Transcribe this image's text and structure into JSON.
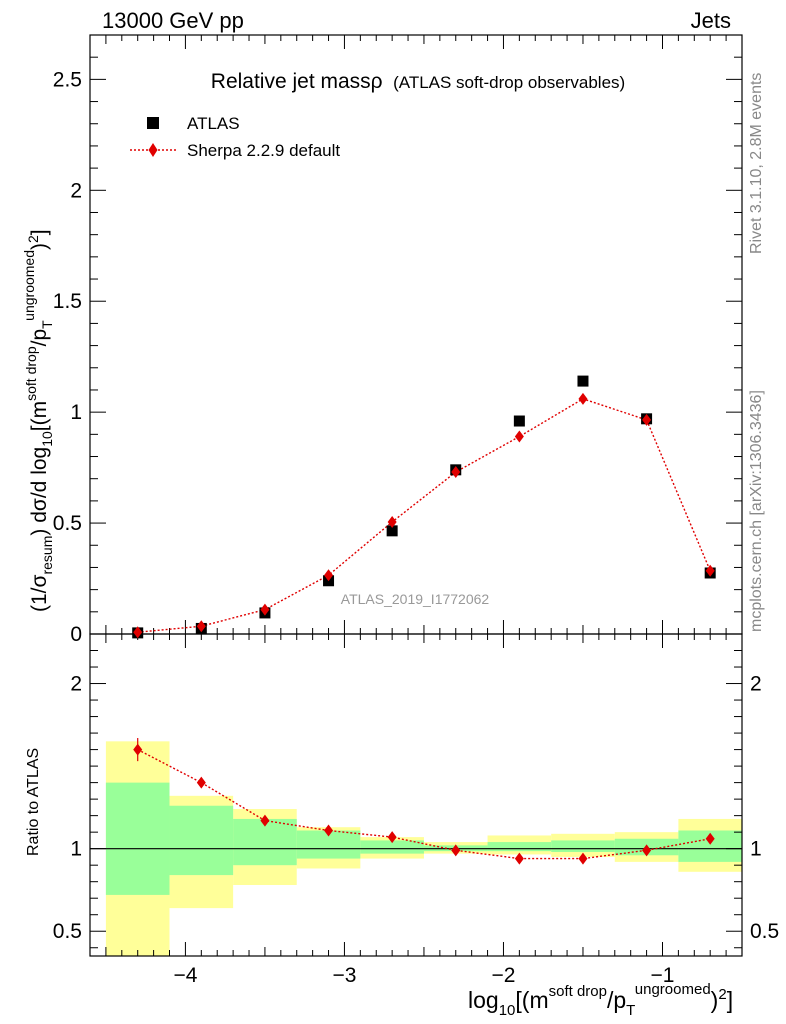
{
  "header": {
    "left": "13000 GeV pp",
    "right": "Jets"
  },
  "side_labels": {
    "rivet": "Rivet 3.1.10,  2.8M events",
    "mcplots": "mcplots.cern.ch [arXiv:1306.3436]"
  },
  "chart_data": {
    "type": "scatter",
    "title_main": "Relative jet massρ",
    "title_sub": "(ATLAS soft-drop observables)",
    "watermark": "ATLAS_2019_I1772062",
    "ylabel": "(1/σresum) dσ/d log10[(m^soft drop/pT^ungroomed)^2]",
    "ylabel_parts": {
      "pre": "(1/σ",
      "sub1": "resum",
      "mid": ") dσ/d log",
      "sub2": "10",
      "mid2": "[(m",
      "sup1": "soft drop",
      "mid3": "/p",
      "sub3": "T",
      "sup2": "ungroomed",
      "mid4": ")",
      "sup3": "2",
      "post": "]"
    },
    "xlabel_parts": {
      "pre": "log",
      "sub1": "10",
      "mid": "[(m",
      "sup1": "soft drop",
      "mid2": "/p",
      "sub2": "T",
      "sup2": "ungroomed",
      "mid3": ")",
      "sup3": "2",
      "post": "]"
    },
    "ratio_ylabel": "Ratio to ATLAS",
    "xlim": [
      -4.6,
      -0.5
    ],
    "ylim": [
      0,
      2.7
    ],
    "ratio_ylim": [
      0.35,
      2.3
    ],
    "x_ticks": [
      -4,
      -3,
      -2,
      -1
    ],
    "x_tick_labels": [
      "−4",
      "−3",
      "−2",
      "−1"
    ],
    "y_ticks": [
      0,
      0.5,
      1,
      1.5,
      2,
      2.5
    ],
    "y_tick_labels": [
      "0",
      "0.5",
      "1",
      "1.5",
      "2",
      "2.5"
    ],
    "ratio_ticks": [
      0.5,
      1,
      2
    ],
    "ratio_tick_labels": [
      "0.5",
      "1",
      "2"
    ],
    "bin_edges": [
      -4.5,
      -4.1,
      -3.7,
      -3.3,
      -2.9,
      -2.5,
      -2.1,
      -1.7,
      -1.3,
      -0.9,
      -0.5
    ],
    "x": [
      -4.3,
      -3.9,
      -3.5,
      -3.1,
      -2.7,
      -2.3,
      -1.9,
      -1.5,
      -1.1,
      -0.7
    ],
    "legend": [
      {
        "name": "ATLAS",
        "marker": "square",
        "color": "#000000"
      },
      {
        "name": "Sherpa 2.2.9 default",
        "marker": "diamond",
        "color": "#e00000"
      }
    ],
    "series": [
      {
        "name": "ATLAS",
        "values": [
          0.005,
          0.025,
          0.095,
          0.24,
          0.465,
          0.74,
          0.96,
          1.14,
          0.97,
          0.275
        ]
      },
      {
        "name": "Sherpa 2.2.9 default",
        "values": [
          0.008,
          0.035,
          0.11,
          0.265,
          0.505,
          0.73,
          0.89,
          1.06,
          0.965,
          0.285
        ]
      }
    ],
    "ratio": {
      "values": [
        1.6,
        1.4,
        1.17,
        1.11,
        1.07,
        0.99,
        0.94,
        0.94,
        0.99,
        1.06
      ],
      "errors": [
        0.07,
        0.03,
        0.015,
        0.012,
        0.01,
        0.008,
        0.007,
        0.006,
        0.006,
        0.01
      ],
      "band_inner": [
        [
          0.72,
          1.4
        ],
        [
          0.84,
          1.26
        ],
        [
          0.9,
          1.18
        ],
        [
          0.94,
          1.11
        ],
        [
          0.97,
          1.05
        ],
        [
          0.985,
          1.02
        ],
        [
          0.985,
          1.04
        ],
        [
          0.98,
          1.05
        ],
        [
          0.96,
          1.06
        ],
        [
          0.92,
          1.11
        ]
      ],
      "band_outer": [
        [
          0.35,
          1.65
        ],
        [
          0.64,
          1.32
        ],
        [
          0.78,
          1.24
        ],
        [
          0.88,
          1.13
        ],
        [
          0.94,
          1.07
        ],
        [
          0.97,
          1.04
        ],
        [
          0.965,
          1.08
        ],
        [
          0.95,
          1.09
        ],
        [
          0.92,
          1.1
        ],
        [
          0.86,
          1.18
        ]
      ],
      "inner_color": "#99ff99",
      "outer_color": "#ffff99"
    }
  }
}
